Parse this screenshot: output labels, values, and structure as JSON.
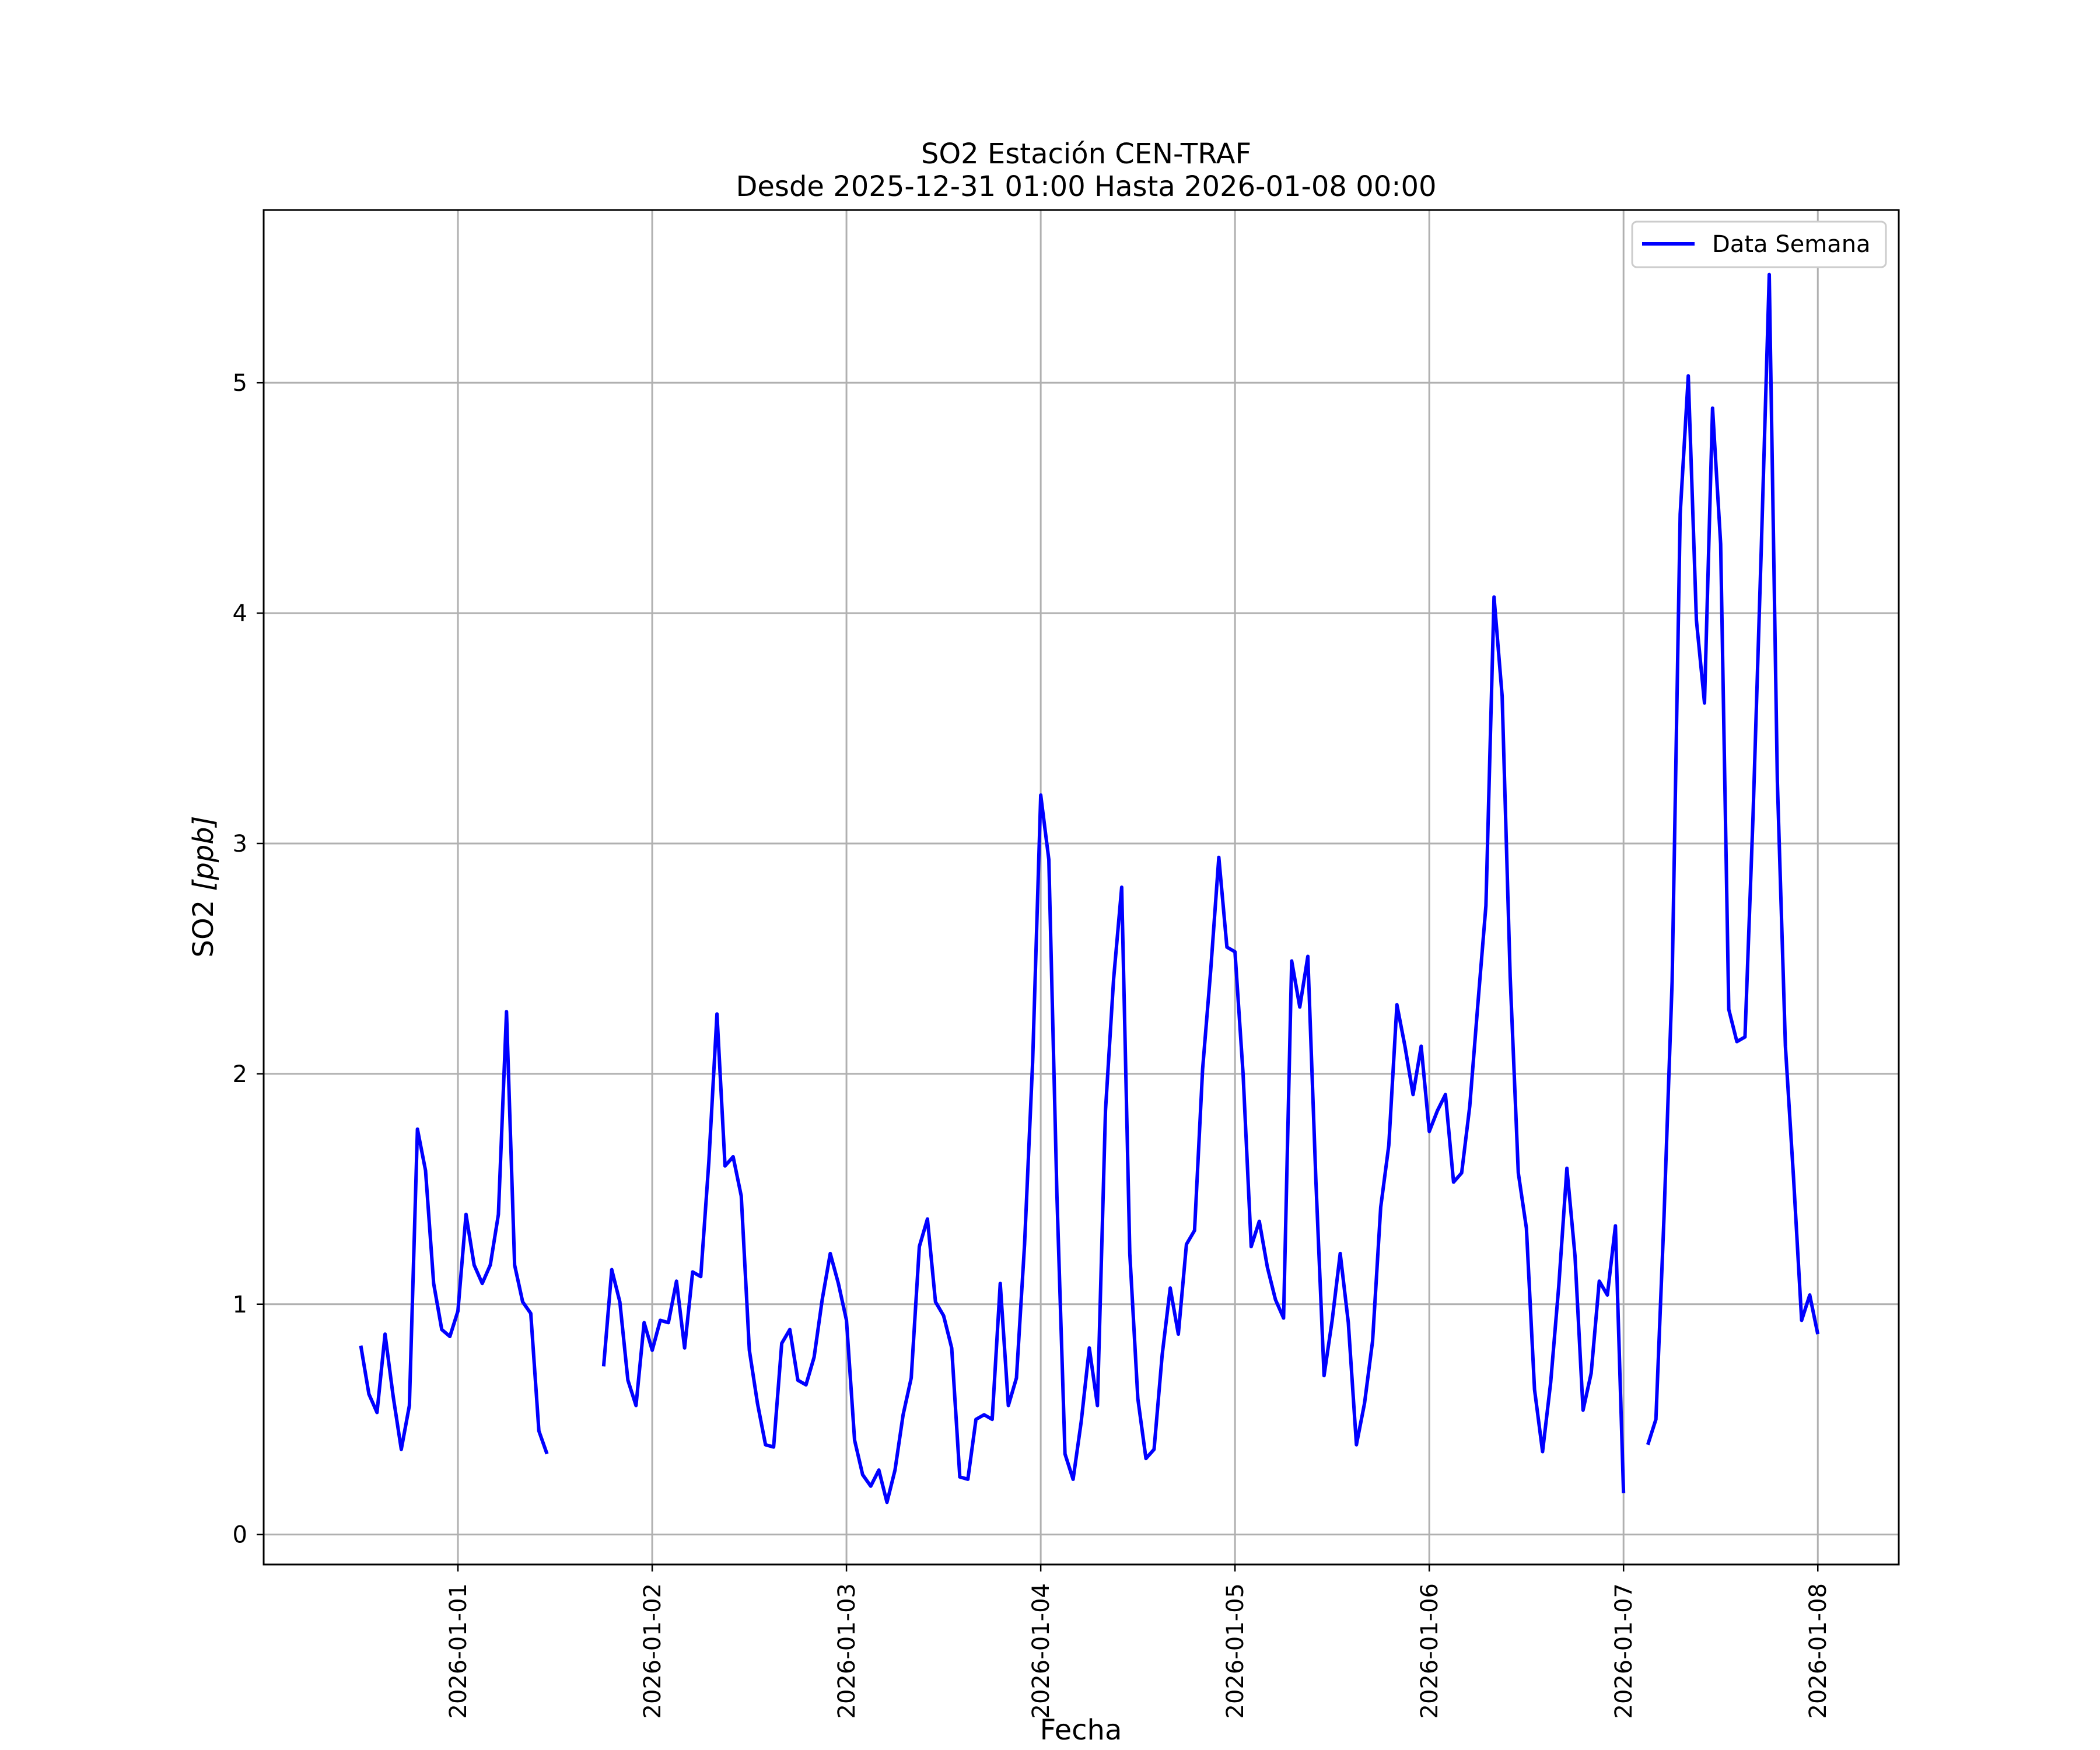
{
  "chart_data": {
    "type": "line",
    "title": "SO2 Estación CEN-TRAF",
    "subtitle": "Desde 2025-12-31 01:00 Hasta 2026-01-08 00:00",
    "xlabel": "Fecha",
    "ylabel_main": "SO2 ",
    "ylabel_unit": "[ppb]",
    "ylim": [
      -0.13,
      5.75
    ],
    "xlim": [
      "2025-12-31 00:00",
      "2026-01-08 10:00"
    ],
    "yticks": [
      0,
      1,
      2,
      3,
      4,
      5
    ],
    "xticks": [
      "2026-01-01",
      "2026-01-02",
      "2026-01-03",
      "2026-01-04",
      "2026-01-05",
      "2026-01-06",
      "2026-01-07",
      "2026-01-08"
    ],
    "grid": true,
    "legend_position": "top-right",
    "series": [
      {
        "name": "Data Semana",
        "color": "#0000ff",
        "x": [
          "2025-12-31 12:00",
          "2025-12-31 13:00",
          "2025-12-31 14:00",
          "2025-12-31 15:00",
          "2025-12-31 16:00",
          "2025-12-31 17:00",
          "2025-12-31 18:00",
          "2025-12-31 19:00",
          "2025-12-31 20:00",
          "2025-12-31 21:00",
          "2025-12-31 22:00",
          "2025-12-31 23:00",
          "2026-01-01 00:00",
          "2026-01-01 01:00",
          "2026-01-01 02:00",
          "2026-01-01 03:00",
          "2026-01-01 04:00",
          "2026-01-01 05:00",
          "2026-01-01 06:00",
          "2026-01-01 07:00",
          "2026-01-01 08:00",
          "2026-01-01 09:00",
          "2026-01-01 10:00",
          "2026-01-01 11:00",
          "2026-01-01 18:00",
          "2026-01-01 19:00",
          "2026-01-01 20:00",
          "2026-01-01 21:00",
          "2026-01-01 22:00",
          "2026-01-01 23:00",
          "2026-01-02 00:00",
          "2026-01-02 01:00",
          "2026-01-02 02:00",
          "2026-01-02 03:00",
          "2026-01-02 04:00",
          "2026-01-02 05:00",
          "2026-01-02 06:00",
          "2026-01-02 07:00",
          "2026-01-02 08:00",
          "2026-01-02 09:00",
          "2026-01-02 10:00",
          "2026-01-02 11:00",
          "2026-01-02 12:00",
          "2026-01-02 13:00",
          "2026-01-02 14:00",
          "2026-01-02 15:00",
          "2026-01-02 16:00",
          "2026-01-02 17:00",
          "2026-01-02 18:00",
          "2026-01-02 19:00",
          "2026-01-02 20:00",
          "2026-01-02 21:00",
          "2026-01-02 22:00",
          "2026-01-02 23:00",
          "2026-01-03 00:00",
          "2026-01-03 01:00",
          "2026-01-03 02:00",
          "2026-01-03 03:00",
          "2026-01-03 04:00",
          "2026-01-03 05:00",
          "2026-01-03 06:00",
          "2026-01-03 07:00",
          "2026-01-03 08:00",
          "2026-01-03 09:00",
          "2026-01-03 10:00",
          "2026-01-03 11:00",
          "2026-01-03 12:00",
          "2026-01-03 13:00",
          "2026-01-03 14:00",
          "2026-01-03 15:00",
          "2026-01-03 16:00",
          "2026-01-03 17:00",
          "2026-01-03 18:00",
          "2026-01-03 19:00",
          "2026-01-03 20:00",
          "2026-01-03 21:00",
          "2026-01-03 22:00",
          "2026-01-03 23:00",
          "2026-01-04 00:00",
          "2026-01-04 01:00",
          "2026-01-04 02:00",
          "2026-01-04 03:00",
          "2026-01-04 04:00",
          "2026-01-04 05:00",
          "2026-01-04 06:00",
          "2026-01-04 07:00",
          "2026-01-04 08:00",
          "2026-01-04 09:00",
          "2026-01-04 10:00",
          "2026-01-04 11:00",
          "2026-01-04 12:00",
          "2026-01-04 13:00",
          "2026-01-04 14:00",
          "2026-01-04 15:00",
          "2026-01-04 16:00",
          "2026-01-04 17:00",
          "2026-01-04 18:00",
          "2026-01-04 19:00",
          "2026-01-04 20:00",
          "2026-01-04 21:00",
          "2026-01-04 22:00",
          "2026-01-04 23:00",
          "2026-01-05 00:00",
          "2026-01-05 01:00",
          "2026-01-05 02:00",
          "2026-01-05 03:00",
          "2026-01-05 04:00",
          "2026-01-05 05:00",
          "2026-01-05 06:00",
          "2026-01-05 07:00",
          "2026-01-05 08:00",
          "2026-01-05 09:00",
          "2026-01-05 10:00",
          "2026-01-05 11:00",
          "2026-01-05 12:00",
          "2026-01-05 13:00",
          "2026-01-05 14:00",
          "2026-01-05 15:00",
          "2026-01-05 16:00",
          "2026-01-05 17:00",
          "2026-01-05 18:00",
          "2026-01-05 19:00",
          "2026-01-05 20:00",
          "2026-01-05 21:00",
          "2026-01-05 22:00",
          "2026-01-05 23:00",
          "2026-01-06 00:00",
          "2026-01-06 01:00",
          "2026-01-06 02:00",
          "2026-01-06 03:00",
          "2026-01-06 04:00",
          "2026-01-06 05:00",
          "2026-01-06 06:00",
          "2026-01-06 07:00",
          "2026-01-06 08:00",
          "2026-01-06 09:00",
          "2026-01-06 10:00",
          "2026-01-06 11:00",
          "2026-01-06 12:00",
          "2026-01-06 13:00",
          "2026-01-06 14:00",
          "2026-01-06 15:00",
          "2026-01-06 16:00",
          "2026-01-06 17:00",
          "2026-01-06 18:00",
          "2026-01-06 19:00",
          "2026-01-06 20:00",
          "2026-01-06 21:00",
          "2026-01-06 22:00",
          "2026-01-06 23:00",
          "2026-01-07 00:00",
          "2026-01-07 03:00",
          "2026-01-07 04:00",
          "2026-01-07 05:00",
          "2026-01-07 06:00",
          "2026-01-07 07:00",
          "2026-01-07 08:00",
          "2026-01-07 09:00",
          "2026-01-07 10:00",
          "2026-01-07 11:00",
          "2026-01-07 12:00",
          "2026-01-07 13:00",
          "2026-01-07 14:00",
          "2026-01-07 15:00",
          "2026-01-07 16:00",
          "2026-01-07 17:00",
          "2026-01-07 18:00",
          "2026-01-07 19:00",
          "2026-01-07 20:00",
          "2026-01-07 21:00",
          "2026-01-07 22:00",
          "2026-01-07 23:00",
          "2026-01-08 00:00"
        ],
        "y": [
          0.82,
          0.61,
          0.53,
          0.87,
          0.6,
          0.37,
          0.56,
          1.76,
          1.58,
          1.09,
          0.89,
          0.86,
          0.97,
          1.39,
          1.17,
          1.09,
          1.17,
          1.39,
          2.27,
          1.17,
          1.01,
          0.96,
          0.45,
          0.35,
          0.73,
          1.15,
          1.01,
          0.67,
          0.56,
          0.92,
          0.8,
          0.93,
          0.92,
          1.1,
          0.81,
          1.14,
          1.12,
          1.62,
          2.26,
          1.6,
          1.64,
          1.47,
          0.8,
          0.57,
          0.39,
          0.38,
          0.83,
          0.89,
          0.67,
          0.65,
          0.77,
          1.02,
          1.22,
          1.09,
          0.93,
          0.41,
          0.26,
          0.21,
          0.28,
          0.14,
          0.28,
          0.52,
          0.68,
          1.25,
          1.37,
          1.01,
          0.95,
          0.81,
          0.25,
          0.24,
          0.5,
          0.52,
          0.5,
          1.09,
          0.56,
          0.68,
          1.26,
          2.05,
          3.21,
          2.93,
          1.47,
          0.35,
          0.24,
          0.49,
          0.81,
          0.56,
          1.84,
          2.41,
          2.81,
          1.22,
          0.59,
          0.33,
          0.37,
          0.78,
          1.07,
          0.87,
          1.26,
          1.32,
          2.02,
          2.45,
          2.94,
          2.55,
          2.53,
          2.0,
          1.25,
          1.36,
          1.16,
          1.02,
          0.94,
          2.49,
          2.29,
          2.51,
          1.53,
          0.69,
          0.93,
          1.22,
          0.92,
          0.39,
          0.57,
          0.84,
          1.42,
          1.69,
          2.3,
          2.12,
          1.91,
          2.12,
          1.75,
          1.84,
          1.91,
          1.53,
          1.57,
          1.86,
          2.3,
          2.73,
          4.07,
          3.64,
          2.42,
          1.57,
          1.33,
          0.63,
          0.36,
          0.66,
          1.08,
          1.59,
          1.21,
          0.54,
          0.7,
          1.1,
          1.04,
          1.34,
          0.18,
          0.39,
          0.5,
          1.38,
          2.4,
          4.43,
          5.03,
          3.97,
          3.61,
          4.89,
          4.3,
          2.28,
          2.14,
          2.16,
          3.12,
          4.26,
          5.47,
          3.27,
          2.12,
          1.55,
          0.93,
          1.04,
          0.87
        ]
      }
    ]
  }
}
